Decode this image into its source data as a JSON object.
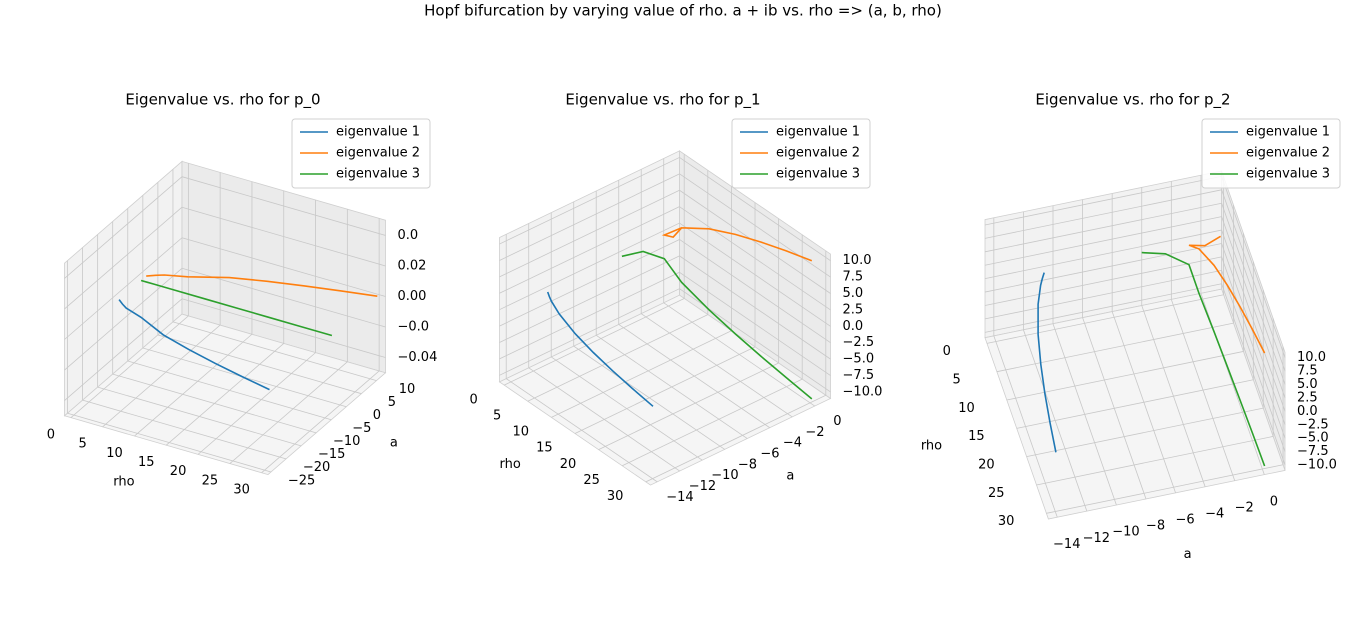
{
  "title": "Hopf bifurcation by varying value of rho. a + ib vs. rho => (a, b, rho)",
  "chart_data": [
    {
      "type": "line3d",
      "title": "Eigenvalue vs. rho for p_0",
      "xlabel": "rho",
      "ylabel": "a",
      "legend": "upper right",
      "grid": true,
      "x": [
        0,
        1,
        2,
        5,
        10,
        15,
        20,
        25,
        30
      ],
      "xlim": [
        -1,
        31
      ],
      "xticks": [
        0,
        5,
        10,
        15,
        20,
        25,
        30
      ],
      "ylim": [
        -26,
        13
      ],
      "yticks": [
        {
          "value": -25,
          "label": "−25"
        },
        {
          "value": -20,
          "label": "−20"
        },
        {
          "value": -15,
          "label": "−15"
        },
        {
          "value": -10,
          "label": "−10"
        },
        {
          "value": -5,
          "label": "−5"
        },
        0,
        5,
        10
      ],
      "zlim": [
        -0.05,
        0.05
      ],
      "zticks": [
        {
          "value": -0.04,
          "label": "−0.04"
        },
        {
          "value": -0.02,
          "label": "−0.0"
        },
        {
          "value": 0,
          "label": "0.00"
        },
        0.02,
        {
          "value": 0.04,
          "label": "0.0"
        }
      ],
      "series": [
        {
          "name": "eigenvalue 1",
          "color": "#1f77b4",
          "values": [
            -10,
            -11,
            -11.84,
            -13.26,
            -16.47,
            -18.55,
            -20.34,
            -21.94,
            -23.4
          ],
          "z": [
            0,
            0,
            0,
            0,
            0,
            0,
            0,
            0,
            0
          ]
        },
        {
          "name": "eigenvalue 2",
          "color": "#ff7f0e",
          "values": [
            -1,
            0,
            0.84,
            2.26,
            5.47,
            7.55,
            9.34,
            10.94,
            12.4
          ],
          "z": [
            0,
            0,
            0,
            0,
            0,
            0,
            0,
            0,
            0
          ]
        },
        {
          "name": "eigenvalue 3",
          "color": "#2ca02c",
          "values": [
            -2.67,
            -2.67,
            -2.67,
            -2.67,
            -2.67,
            -2.67,
            -2.67,
            -2.67,
            -2.67
          ],
          "z": [
            0,
            0,
            0,
            0,
            0,
            0,
            0,
            0,
            0
          ]
        }
      ]
    },
    {
      "type": "line3d",
      "title": "Eigenvalue vs. rho for p_1",
      "xlabel": "rho",
      "ylabel": "a",
      "legend": "upper right",
      "grid": true,
      "x": [
        0,
        1,
        2,
        5,
        10,
        15,
        20,
        25,
        30
      ],
      "xlim": [
        -1,
        31
      ],
      "xticks": [
        0,
        5,
        10,
        15,
        20,
        25,
        30
      ],
      "ylim": [
        -14.6,
        1.4
      ],
      "yticks": [
        {
          "value": -14,
          "label": "−14"
        },
        {
          "value": -12,
          "label": "−12"
        },
        {
          "value": -10,
          "label": "−10"
        },
        {
          "value": -8,
          "label": "−8"
        },
        {
          "value": -6,
          "label": "−6"
        },
        {
          "value": -4,
          "label": "−4"
        },
        {
          "value": -2,
          "label": "−2"
        },
        0
      ],
      "zlim": [
        -11,
        11
      ],
      "zticks": [
        {
          "value": -10,
          "label": "−10.0"
        },
        {
          "value": -7.5,
          "label": "−7.5"
        },
        {
          "value": -5,
          "label": "−5.0"
        },
        {
          "value": -2.5,
          "label": "−2.5"
        },
        {
          "value": 0,
          "label": "0.0"
        },
        2.5,
        {
          "value": 5,
          "label": "5.0"
        },
        7.5,
        {
          "value": 10,
          "label": "10.0"
        }
      ],
      "series": [
        {
          "name": "eigenvalue 1",
          "color": "#1f77b4",
          "values": [
            -10.73,
            -11,
            -11.24,
            -11.81,
            -12.48,
            -12.97,
            -13.36,
            -13.68,
            -13.96
          ],
          "z": [
            0,
            0,
            0,
            0,
            0,
            0,
            0,
            0,
            0
          ]
        },
        {
          "name": "eigenvalue 2",
          "color": "#ff7f0e",
          "values": [
            1.2,
            0,
            -1.21,
            -0.93,
            -0.59,
            -0.35,
            -0.16,
            0.01,
            0.15
          ],
          "z": [
            0,
            0,
            1.81,
            4.15,
            6.17,
            7.58,
            8.71,
            9.67,
            10.52
          ]
        },
        {
          "name": "eigenvalue 3",
          "color": "#2ca02c",
          "values": [
            -4.14,
            -2.67,
            -1.21,
            -0.93,
            -0.59,
            -0.35,
            -0.16,
            0.01,
            0.15
          ],
          "z": [
            0,
            0,
            -1.81,
            -4.15,
            -6.17,
            -7.58,
            -8.71,
            -9.67,
            -10.52
          ]
        }
      ]
    },
    {
      "type": "line3d",
      "title": "Eigenvalue vs. rho for p_2",
      "xlabel": "rho",
      "ylabel": "a",
      "legend": "upper right",
      "grid": true,
      "x": [
        0,
        1,
        2,
        5,
        10,
        15,
        20,
        25,
        30
      ],
      "xlim": [
        -1,
        31
      ],
      "xticks": [
        0,
        5,
        10,
        15,
        20,
        25,
        30
      ],
      "ylim": [
        -14.6,
        1.4
      ],
      "yticks": [
        {
          "value": -14,
          "label": "−14"
        },
        {
          "value": -12,
          "label": "−12"
        },
        {
          "value": -10,
          "label": "−10"
        },
        {
          "value": -8,
          "label": "−8"
        },
        {
          "value": -6,
          "label": "−6"
        },
        {
          "value": -4,
          "label": "−4"
        },
        {
          "value": -2,
          "label": "−2"
        },
        0
      ],
      "zlim": [
        -11,
        11
      ],
      "zticks": [
        {
          "value": -10,
          "label": "−10.0"
        },
        {
          "value": -7.5,
          "label": "−7.5"
        },
        {
          "value": -5,
          "label": "−5.0"
        },
        {
          "value": -2.5,
          "label": "−2.5"
        },
        {
          "value": 0,
          "label": "0.0"
        },
        2.5,
        {
          "value": 5,
          "label": "5.0"
        },
        7.5,
        {
          "value": 10,
          "label": "10.0"
        }
      ],
      "series": [
        {
          "name": "eigenvalue 1",
          "color": "#1f77b4",
          "values": [
            -10.73,
            -11,
            -11.24,
            -11.81,
            -12.48,
            -12.97,
            -13.36,
            -13.68,
            -13.96
          ],
          "z": [
            0,
            0,
            0,
            0,
            0,
            0,
            0,
            0,
            0
          ]
        },
        {
          "name": "eigenvalue 2",
          "color": "#ff7f0e",
          "values": [
            1.2,
            0,
            -1.21,
            -0.93,
            -0.59,
            -0.35,
            -0.16,
            0.01,
            0.15
          ],
          "z": [
            0,
            0,
            1.81,
            4.15,
            6.17,
            7.58,
            8.71,
            9.67,
            10.52
          ]
        },
        {
          "name": "eigenvalue 3",
          "color": "#2ca02c",
          "values": [
            -4.14,
            -2.67,
            -1.21,
            -0.93,
            -0.59,
            -0.35,
            -0.16,
            0.01,
            0.15
          ],
          "z": [
            0,
            0,
            -1.81,
            -4.15,
            -6.17,
            -7.58,
            -8.71,
            -9.67,
            -10.52
          ]
        }
      ]
    }
  ]
}
